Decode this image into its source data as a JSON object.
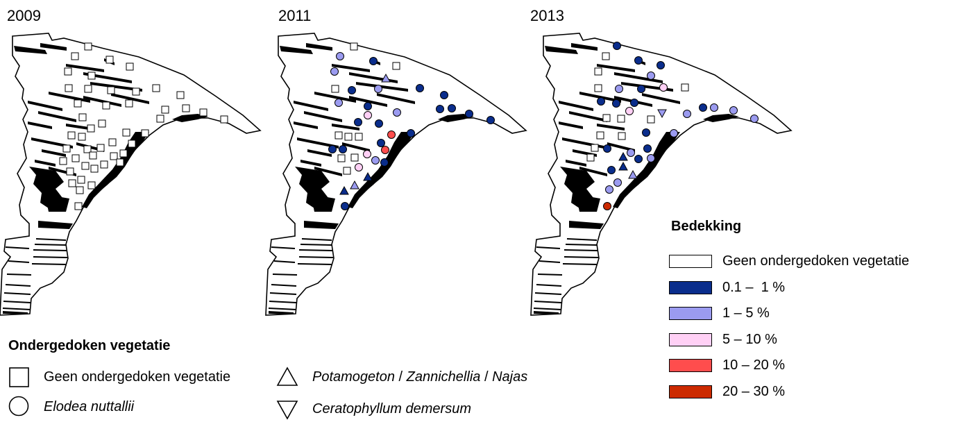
{
  "years": [
    "2009",
    "2011",
    "2013"
  ],
  "vegetation_legend": {
    "title": "Ondergedoken vegetatie",
    "items": [
      {
        "symbol": "square-icon",
        "label": "Geen ondergedoken vegetatie"
      },
      {
        "symbol": "circle-icon",
        "label": "Elodea nuttallii"
      },
      {
        "symbol": "triangle-up-icon",
        "parts": [
          "Potamogeton",
          " / ",
          "Zannichellia",
          " / ",
          "Najas"
        ]
      },
      {
        "symbol": "triangle-down-icon",
        "label": "Ceratophyllum demersum"
      }
    ]
  },
  "cover_legend": {
    "title": "Bedekking",
    "items": [
      {
        "label": "Geen ondergedoken vegetatie",
        "color": "#ffffff"
      },
      {
        "label": "0.1 –  1 %",
        "color": "#0a2d8c"
      },
      {
        "label": "1 – 5 %",
        "color": "#9b9bf0"
      },
      {
        "label": "5 – 10 %",
        "color": "#ffd0f5"
      },
      {
        "label": "10 – 20 %",
        "color": "#ff4d4d"
      },
      {
        "label": "20 – 30 %",
        "color": "#cc2a00"
      }
    ]
  }
}
